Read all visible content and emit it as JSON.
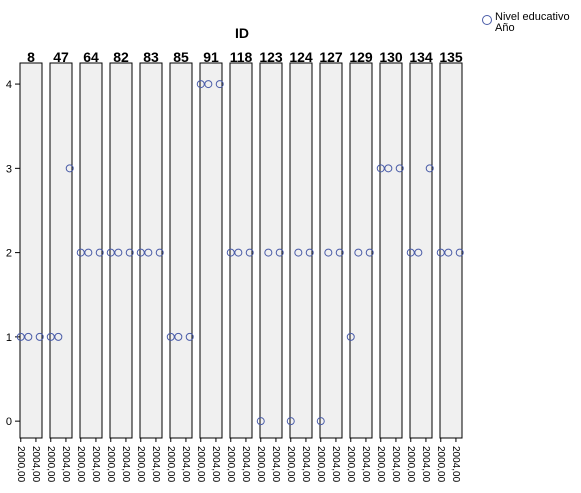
{
  "chart_data": {
    "type": "scatter",
    "title": "ID",
    "legend_lines": [
      "Nivel educativo",
      "Año"
    ],
    "color": "#4a5ca8",
    "ylim": [
      -0.2,
      4.25
    ],
    "yticks": [
      0,
      1,
      2,
      3,
      4
    ],
    "xlim": [
      1999.8,
      2005.6
    ],
    "xticks": [
      {
        "value": 2000,
        "label": "2000,00"
      },
      {
        "value": 2004,
        "label": "2004,00"
      }
    ],
    "panels": [
      {
        "title": "8",
        "x": [
          2000,
          2002,
          2005
        ],
        "values": [
          1,
          1,
          1
        ]
      },
      {
        "title": "47",
        "x": [
          2000,
          2002,
          2005
        ],
        "values": [
          1,
          1,
          3
        ]
      },
      {
        "title": "64",
        "x": [
          2000,
          2002,
          2005
        ],
        "values": [
          2,
          2,
          2
        ]
      },
      {
        "title": "82",
        "x": [
          2000,
          2002,
          2005
        ],
        "values": [
          2,
          2,
          2
        ]
      },
      {
        "title": "83",
        "x": [
          2000,
          2002,
          2005
        ],
        "values": [
          2,
          2,
          2
        ]
      },
      {
        "title": "85",
        "x": [
          2000,
          2002,
          2005
        ],
        "values": [
          1,
          1,
          1
        ]
      },
      {
        "title": "91",
        "x": [
          2000,
          2002,
          2005
        ],
        "values": [
          4,
          4,
          4
        ]
      },
      {
        "title": "118",
        "x": [
          2000,
          2002,
          2005
        ],
        "values": [
          2,
          2,
          2
        ]
      },
      {
        "title": "123",
        "x": [
          2000,
          2002,
          2005
        ],
        "values": [
          0,
          2,
          2
        ]
      },
      {
        "title": "124",
        "x": [
          2000,
          2002,
          2005
        ],
        "values": [
          0,
          2,
          2
        ]
      },
      {
        "title": "127",
        "x": [
          2000,
          2002,
          2005
        ],
        "values": [
          0,
          2,
          2
        ]
      },
      {
        "title": "129",
        "x": [
          2000,
          2002,
          2005
        ],
        "values": [
          1,
          2,
          2
        ]
      },
      {
        "title": "130",
        "x": [
          2000,
          2002,
          2005
        ],
        "values": [
          3,
          3,
          3
        ]
      },
      {
        "title": "134",
        "x": [
          2000,
          2002,
          2005
        ],
        "values": [
          2,
          2,
          3
        ]
      },
      {
        "title": "135",
        "x": [
          2000,
          2002,
          2005
        ],
        "values": [
          2,
          2,
          2
        ]
      }
    ]
  }
}
